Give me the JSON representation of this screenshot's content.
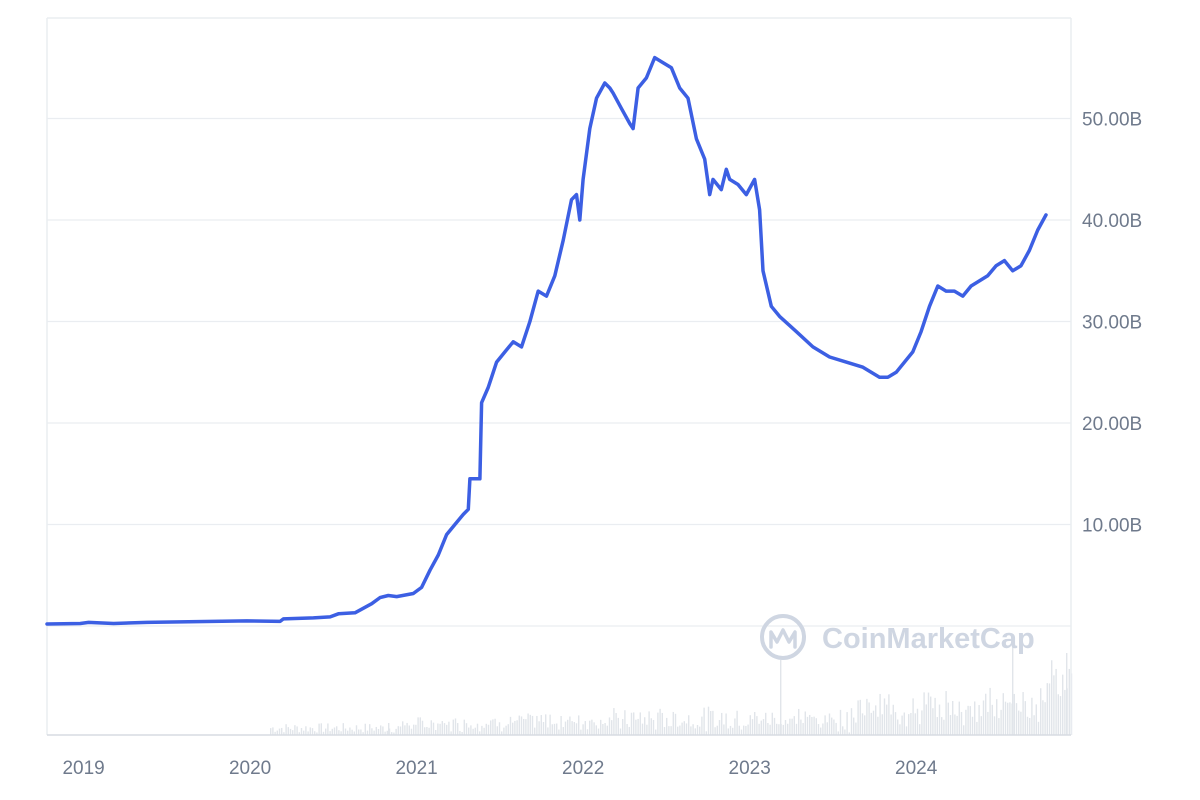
{
  "watermark": {
    "text": "CoinMarketCap",
    "icon": "coinmarketcap-logo-icon"
  },
  "colors": {
    "line": "#3c5fe3",
    "grid": "#eaedf1",
    "axis_text": "#6f7a8c",
    "volume": "#e1e5ea",
    "watermark": "#cfd6e2"
  },
  "chart_data": {
    "type": "line",
    "title": "",
    "xlabel": "",
    "ylabel": "",
    "x_ticks": [
      "2019",
      "2020",
      "2021",
      "2022",
      "2023",
      "2024"
    ],
    "y_ticks": [
      {
        "value": 10,
        "label": "10.00B"
      },
      {
        "value": 20,
        "label": "20.00B"
      },
      {
        "value": 30,
        "label": "30.00B"
      },
      {
        "value": 40,
        "label": "40.00B"
      },
      {
        "value": 50,
        "label": "50.00B"
      }
    ],
    "xlim": [
      2018.8,
      2024.95
    ],
    "ylim": [
      0,
      60
    ],
    "y_unit": "B",
    "grid": true,
    "y_axis_side": "right",
    "series": [
      {
        "values_unit": "billions",
        "points": [
          [
            2018.8,
            0.2
          ],
          [
            2019.0,
            0.25
          ],
          [
            2019.05,
            0.35
          ],
          [
            2019.2,
            0.25
          ],
          [
            2019.4,
            0.35
          ],
          [
            2019.6,
            0.4
          ],
          [
            2019.8,
            0.45
          ],
          [
            2020.0,
            0.5
          ],
          [
            2020.2,
            0.45
          ],
          [
            2020.22,
            0.7
          ],
          [
            2020.4,
            0.8
          ],
          [
            2020.5,
            0.9
          ],
          [
            2020.55,
            1.2
          ],
          [
            2020.65,
            1.3
          ],
          [
            2020.75,
            2.2
          ],
          [
            2020.8,
            2.8
          ],
          [
            2020.85,
            3.0
          ],
          [
            2020.9,
            2.9
          ],
          [
            2021.0,
            3.2
          ],
          [
            2021.05,
            3.8
          ],
          [
            2021.1,
            5.5
          ],
          [
            2021.15,
            7.0
          ],
          [
            2021.2,
            9.0
          ],
          [
            2021.25,
            10.0
          ],
          [
            2021.3,
            11.0
          ],
          [
            2021.33,
            11.5
          ],
          [
            2021.34,
            14.5
          ],
          [
            2021.4,
            14.5
          ],
          [
            2021.41,
            22.0
          ],
          [
            2021.45,
            23.5
          ],
          [
            2021.5,
            26.0
          ],
          [
            2021.55,
            27.0
          ],
          [
            2021.6,
            28.0
          ],
          [
            2021.65,
            27.5
          ],
          [
            2021.7,
            30.0
          ],
          [
            2021.75,
            33.0
          ],
          [
            2021.8,
            32.5
          ],
          [
            2021.85,
            34.5
          ],
          [
            2021.9,
            38.0
          ],
          [
            2021.95,
            42.0
          ],
          [
            2021.98,
            42.5
          ],
          [
            2022.0,
            40.0
          ],
          [
            2022.02,
            44.0
          ],
          [
            2022.06,
            49.0
          ],
          [
            2022.1,
            52.0
          ],
          [
            2022.15,
            53.5
          ],
          [
            2022.18,
            53.0
          ],
          [
            2022.2,
            52.5
          ],
          [
            2022.25,
            51.0
          ],
          [
            2022.3,
            49.5
          ],
          [
            2022.32,
            49.0
          ],
          [
            2022.35,
            53.0
          ],
          [
            2022.4,
            54.0
          ],
          [
            2022.45,
            56.0
          ],
          [
            2022.5,
            55.5
          ],
          [
            2022.55,
            55.0
          ],
          [
            2022.6,
            53.0
          ],
          [
            2022.65,
            52.0
          ],
          [
            2022.7,
            48.0
          ],
          [
            2022.75,
            46.0
          ],
          [
            2022.78,
            42.5
          ],
          [
            2022.8,
            44.0
          ],
          [
            2022.85,
            43.0
          ],
          [
            2022.88,
            45.0
          ],
          [
            2022.9,
            44.0
          ],
          [
            2022.95,
            43.5
          ],
          [
            2023.0,
            42.5
          ],
          [
            2023.05,
            44.0
          ],
          [
            2023.08,
            41.0
          ],
          [
            2023.1,
            35.0
          ],
          [
            2023.15,
            31.5
          ],
          [
            2023.2,
            30.5
          ],
          [
            2023.3,
            29.0
          ],
          [
            2023.4,
            27.5
          ],
          [
            2023.5,
            26.5
          ],
          [
            2023.6,
            26.0
          ],
          [
            2023.7,
            25.5
          ],
          [
            2023.8,
            24.5
          ],
          [
            2023.85,
            24.5
          ],
          [
            2023.9,
            25.0
          ],
          [
            2024.0,
            27.0
          ],
          [
            2024.05,
            29.0
          ],
          [
            2024.1,
            31.5
          ],
          [
            2024.15,
            33.5
          ],
          [
            2024.2,
            33.0
          ],
          [
            2024.25,
            33.0
          ],
          [
            2024.3,
            32.5
          ],
          [
            2024.35,
            33.5
          ],
          [
            2024.4,
            34.0
          ],
          [
            2024.45,
            34.5
          ],
          [
            2024.5,
            35.5
          ],
          [
            2024.55,
            36.0
          ],
          [
            2024.6,
            35.0
          ],
          [
            2024.65,
            35.5
          ],
          [
            2024.7,
            37.0
          ],
          [
            2024.75,
            39.0
          ],
          [
            2024.8,
            40.5
          ]
        ]
      }
    ]
  }
}
